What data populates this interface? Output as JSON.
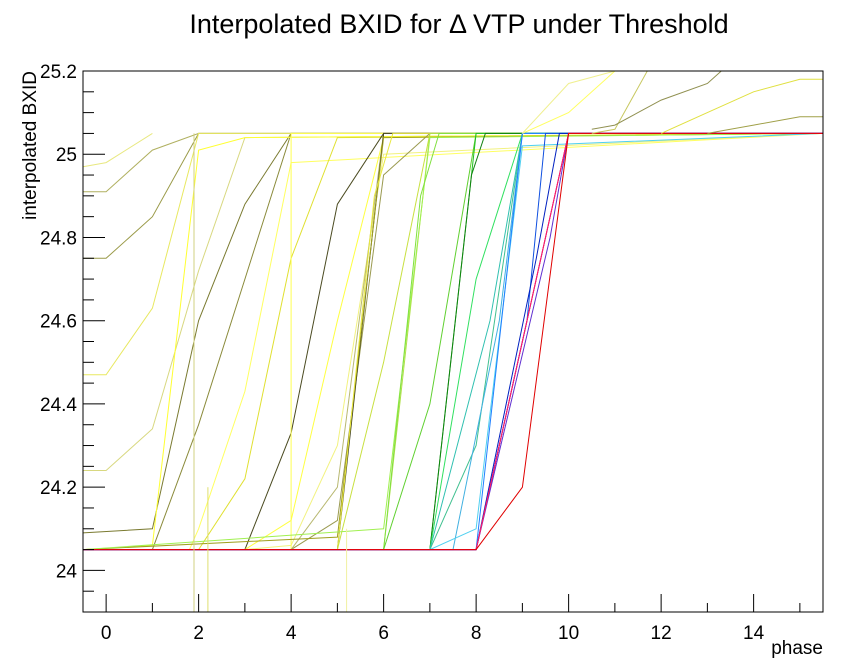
{
  "chart_data": {
    "type": "line",
    "title": "Interpolated BXID for Δ VTP under Threshold",
    "xlabel": "phase",
    "ylabel": "interpolated BXID",
    "xlim": [
      -0.5,
      15.5
    ],
    "ylim": [
      23.9,
      25.2
    ],
    "x_ticks": [
      0,
      2,
      4,
      6,
      8,
      10,
      12,
      14
    ],
    "y_ticks": [
      24,
      24.2,
      24.4,
      24.6,
      24.8,
      25,
      25.2
    ],
    "y_tick_labels": [
      "24",
      "24.2",
      "24.4",
      "24.6",
      "24.8",
      "25",
      "25.2"
    ],
    "grid": false,
    "legend": "none",
    "baseline_low": 24.05,
    "baseline_high": 25.05,
    "series": [
      {
        "color": "#8a8a3a",
        "values": [
          [
            -0.5,
            24.05
          ],
          [
            1,
            24.05
          ],
          [
            2,
            24.35
          ],
          [
            3,
            24.7
          ],
          [
            4,
            25.05
          ],
          [
            15.5,
            25.05
          ]
        ]
      },
      {
        "color": "#7a7a30",
        "values": [
          [
            -0.5,
            24.09
          ],
          [
            1,
            24.1
          ],
          [
            2,
            24.6
          ],
          [
            3,
            24.88
          ],
          [
            4,
            25.05
          ],
          [
            15.5,
            25.05
          ]
        ]
      },
      {
        "color": "#9a9a48",
        "values": [
          [
            -0.5,
            24.75
          ],
          [
            0,
            24.75
          ],
          [
            1,
            24.85
          ],
          [
            2,
            25.05
          ],
          [
            15.5,
            25.05
          ]
        ]
      },
      {
        "color": "#b0b060",
        "values": [
          [
            -0.5,
            24.91
          ],
          [
            0,
            24.91
          ],
          [
            1,
            25.01
          ],
          [
            2,
            25.05
          ],
          [
            15.5,
            25.05
          ]
        ]
      },
      {
        "color": "#e8e860",
        "values": [
          [
            -0.5,
            24.47
          ],
          [
            0,
            24.47
          ],
          [
            1,
            24.63
          ],
          [
            2,
            25.05
          ],
          [
            15.5,
            25.05
          ]
        ]
      },
      {
        "color": "#d8d880",
        "values": [
          [
            -0.5,
            24.24
          ],
          [
            0,
            24.24
          ],
          [
            1,
            24.34
          ],
          [
            2,
            24.72
          ],
          [
            3,
            25.04
          ],
          [
            15.5,
            25.05
          ]
        ]
      },
      {
        "color": "#ffff30",
        "values": [
          [
            -0.5,
            24.05
          ],
          [
            1,
            24.06
          ],
          [
            2,
            25.01
          ],
          [
            3,
            25.04
          ],
          [
            15.5,
            25.05
          ]
        ]
      },
      {
        "color": "#ffff60",
        "values": [
          [
            -0.5,
            24.05
          ],
          [
            1.8,
            24.05
          ],
          [
            2,
            24.1
          ],
          [
            3,
            24.43
          ],
          [
            4,
            24.98
          ],
          [
            15.5,
            25.05
          ]
        ]
      },
      {
        "color": "#e0e030",
        "values": [
          [
            -0.5,
            24.05
          ],
          [
            2,
            24.05
          ],
          [
            3,
            24.22
          ],
          [
            4,
            24.75
          ],
          [
            5,
            25.04
          ],
          [
            15.5,
            25.05
          ]
        ]
      },
      {
        "color": "#4a4a20",
        "values": [
          [
            -0.5,
            24.05
          ],
          [
            3,
            24.05
          ],
          [
            4,
            24.33
          ],
          [
            5,
            24.88
          ],
          [
            6,
            25.05
          ],
          [
            15.5,
            25.05
          ]
        ]
      },
      {
        "color": "#ffff40",
        "values": [
          [
            -0.5,
            24.05
          ],
          [
            3,
            24.05
          ],
          [
            4,
            24.12
          ],
          [
            5,
            24.6
          ],
          [
            6,
            25.04
          ],
          [
            15.5,
            25.05
          ]
        ]
      },
      {
        "color": "#f2f280",
        "values": [
          [
            -0.5,
            24.05
          ],
          [
            3,
            24.05
          ],
          [
            4,
            24.06
          ],
          [
            5,
            24.3
          ],
          [
            6,
            25.0
          ],
          [
            15.5,
            25.05
          ]
        ]
      },
      {
        "color": "#ffff50",
        "values": [
          [
            -0.5,
            24.05
          ],
          [
            4,
            24.05
          ],
          [
            4,
            25.05
          ],
          [
            15.5,
            25.05
          ]
        ]
      },
      {
        "color": "#9a9a50",
        "values": [
          [
            -0.5,
            24.05
          ],
          [
            4,
            24.05
          ],
          [
            5,
            24.12
          ],
          [
            6,
            24.95
          ],
          [
            7,
            25.05
          ],
          [
            15.5,
            25.05
          ]
        ]
      },
      {
        "color": "#b8b870",
        "values": [
          [
            -0.5,
            24.05
          ],
          [
            4,
            24.05
          ],
          [
            5,
            24.2
          ],
          [
            6,
            25.05
          ],
          [
            15.5,
            25.05
          ]
        ]
      },
      {
        "color": "#404020",
        "values": [
          [
            -0.5,
            24.05
          ],
          [
            5,
            24.05
          ],
          [
            6,
            25.05
          ],
          [
            15.5,
            25.05
          ]
        ]
      },
      {
        "color": "#a0a020",
        "values": [
          [
            -0.5,
            24.05
          ],
          [
            5,
            24.08
          ],
          [
            6,
            25.04
          ],
          [
            15.5,
            25.05
          ]
        ]
      },
      {
        "color": "#e8e840",
        "values": [
          [
            -0.5,
            24.05
          ],
          [
            5,
            24.05
          ],
          [
            5.8,
            24.9
          ],
          [
            6.2,
            25.05
          ],
          [
            15.5,
            25.05
          ]
        ]
      },
      {
        "color": "#c8e040",
        "values": [
          [
            -0.5,
            24.05
          ],
          [
            5,
            24.05
          ],
          [
            6,
            24.5
          ],
          [
            7,
            25.05
          ],
          [
            15.5,
            25.05
          ]
        ]
      },
      {
        "color": "#b0e048",
        "values": [
          [
            -0.5,
            24.05
          ],
          [
            6,
            24.05
          ],
          [
            7,
            25.05
          ],
          [
            15.5,
            25.05
          ]
        ]
      },
      {
        "color": "#a0f050",
        "values": [
          [
            -0.5,
            24.05
          ],
          [
            6,
            24.1
          ],
          [
            7,
            25.04
          ],
          [
            15.5,
            25.05
          ]
        ]
      },
      {
        "color": "#80e040",
        "values": [
          [
            -0.5,
            24.05
          ],
          [
            6,
            24.05
          ],
          [
            6.8,
            24.9
          ],
          [
            7.2,
            25.05
          ],
          [
            15.5,
            25.05
          ]
        ]
      },
      {
        "color": "#60d030",
        "values": [
          [
            -0.5,
            24.05
          ],
          [
            6,
            24.05
          ],
          [
            7,
            24.4
          ],
          [
            8,
            25.05
          ],
          [
            15.5,
            25.05
          ]
        ]
      },
      {
        "color": "#20c020",
        "values": [
          [
            -0.5,
            24.05
          ],
          [
            7,
            24.05
          ],
          [
            8,
            25.05
          ],
          [
            15.5,
            25.05
          ]
        ]
      },
      {
        "color": "#108010",
        "values": [
          [
            -0.5,
            24.05
          ],
          [
            7,
            24.05
          ],
          [
            7.9,
            24.95
          ],
          [
            8.2,
            25.05
          ],
          [
            15.5,
            25.05
          ]
        ]
      },
      {
        "color": "#30e060",
        "values": [
          [
            -0.5,
            24.05
          ],
          [
            7,
            24.05
          ],
          [
            8,
            24.7
          ],
          [
            9,
            25.05
          ],
          [
            15.5,
            25.05
          ]
        ]
      },
      {
        "color": "#40c090",
        "values": [
          [
            -0.5,
            24.05
          ],
          [
            7,
            24.05
          ],
          [
            8,
            24.3
          ],
          [
            9,
            25.05
          ],
          [
            15.5,
            25.05
          ]
        ]
      },
      {
        "color": "#30c0b0",
        "values": [
          [
            -0.5,
            24.05
          ],
          [
            7,
            24.05
          ],
          [
            8.3,
            24.6
          ],
          [
            9,
            25.05
          ],
          [
            15.5,
            25.05
          ]
        ]
      },
      {
        "color": "#40b0e0",
        "values": [
          [
            -0.5,
            24.05
          ],
          [
            7.5,
            24.05
          ],
          [
            8.5,
            24.6
          ],
          [
            9,
            25.05
          ],
          [
            15.5,
            25.05
          ]
        ]
      },
      {
        "color": "#50d0f0",
        "values": [
          [
            -0.5,
            24.05
          ],
          [
            7,
            24.05
          ],
          [
            8,
            24.1
          ],
          [
            9,
            25.02
          ],
          [
            15.5,
            25.05
          ]
        ]
      },
      {
        "color": "#2080ff",
        "values": [
          [
            -0.5,
            24.05
          ],
          [
            8,
            24.05
          ],
          [
            9,
            25.05
          ],
          [
            15.5,
            25.05
          ]
        ]
      },
      {
        "color": "#1050e0",
        "values": [
          [
            -0.5,
            24.05
          ],
          [
            8,
            24.05
          ],
          [
            9.1,
            24.6
          ],
          [
            9.5,
            25.05
          ],
          [
            15.5,
            25.05
          ]
        ]
      },
      {
        "color": "#0020c0",
        "values": [
          [
            -0.5,
            24.05
          ],
          [
            8,
            24.05
          ],
          [
            9.3,
            24.75
          ],
          [
            9.8,
            25.05
          ],
          [
            15.5,
            25.05
          ]
        ]
      },
      {
        "color": "#6030d0",
        "values": [
          [
            -0.5,
            24.05
          ],
          [
            8,
            24.05
          ],
          [
            9.6,
            24.8
          ],
          [
            10,
            25.05
          ],
          [
            15.5,
            25.05
          ]
        ]
      },
      {
        "color": "#9020b0",
        "values": [
          [
            -0.5,
            24.05
          ],
          [
            8,
            24.05
          ],
          [
            9.7,
            24.9
          ],
          [
            10,
            25.05
          ],
          [
            15.5,
            25.05
          ]
        ]
      },
      {
        "color": "#c000a0",
        "values": [
          [
            -0.5,
            24.05
          ],
          [
            8,
            24.05
          ],
          [
            9.8,
            24.95
          ],
          [
            10,
            25.05
          ],
          [
            15.5,
            25.05
          ]
        ]
      },
      {
        "color": "#ff2060",
        "values": [
          [
            -0.5,
            24.05
          ],
          [
            8,
            24.05
          ],
          [
            10,
            25.05
          ],
          [
            15.5,
            25.05
          ]
        ]
      },
      {
        "color": "#e00000",
        "values": [
          [
            -0.5,
            24.05
          ],
          [
            8,
            24.05
          ],
          [
            9,
            24.2
          ],
          [
            10,
            25.05
          ],
          [
            15.5,
            25.05
          ]
        ]
      },
      {
        "color": "#ffff60",
        "values": [
          [
            9,
            25.05
          ],
          [
            10,
            25.1
          ],
          [
            11,
            25.2
          ],
          [
            11.5,
            25.2
          ]
        ]
      },
      {
        "color": "#f0f090",
        "values": [
          [
            9,
            25.05
          ],
          [
            10,
            25.17
          ],
          [
            11,
            25.2
          ],
          [
            11.3,
            25.2
          ]
        ]
      },
      {
        "color": "#c8c860",
        "values": [
          [
            10.5,
            25.05
          ],
          [
            11,
            25.06
          ],
          [
            11.7,
            25.2
          ],
          [
            11.8,
            25.2
          ]
        ]
      },
      {
        "color": "#909050",
        "values": [
          [
            10.5,
            25.06
          ],
          [
            11,
            25.07
          ],
          [
            12,
            25.13
          ],
          [
            13,
            25.17
          ],
          [
            13.3,
            25.2
          ],
          [
            13.6,
            25.2
          ]
        ]
      },
      {
        "color": "#e0e040",
        "values": [
          [
            12,
            25.05
          ],
          [
            13,
            25.1
          ],
          [
            14,
            25.15
          ],
          [
            15,
            25.18
          ],
          [
            15.5,
            25.18
          ]
        ]
      },
      {
        "color": "#a0a048",
        "values": [
          [
            13,
            25.05
          ],
          [
            14,
            25.07
          ],
          [
            15,
            25.09
          ],
          [
            15.5,
            25.09
          ]
        ]
      },
      {
        "color": "#e8e880",
        "values": [
          [
            -0.5,
            24.97
          ],
          [
            0,
            24.98
          ],
          [
            1,
            25.05
          ]
        ]
      },
      {
        "color": "#d0d080",
        "values": [
          [
            1.9,
            23.9
          ],
          [
            1.9,
            25.05
          ]
        ]
      },
      {
        "color": "#e0e070",
        "values": [
          [
            2.2,
            23.9
          ],
          [
            2.2,
            24.2
          ]
        ]
      },
      {
        "color": "#f0f0a0",
        "values": [
          [
            5.2,
            23.9
          ],
          [
            5.2,
            24.1
          ]
        ]
      }
    ]
  }
}
